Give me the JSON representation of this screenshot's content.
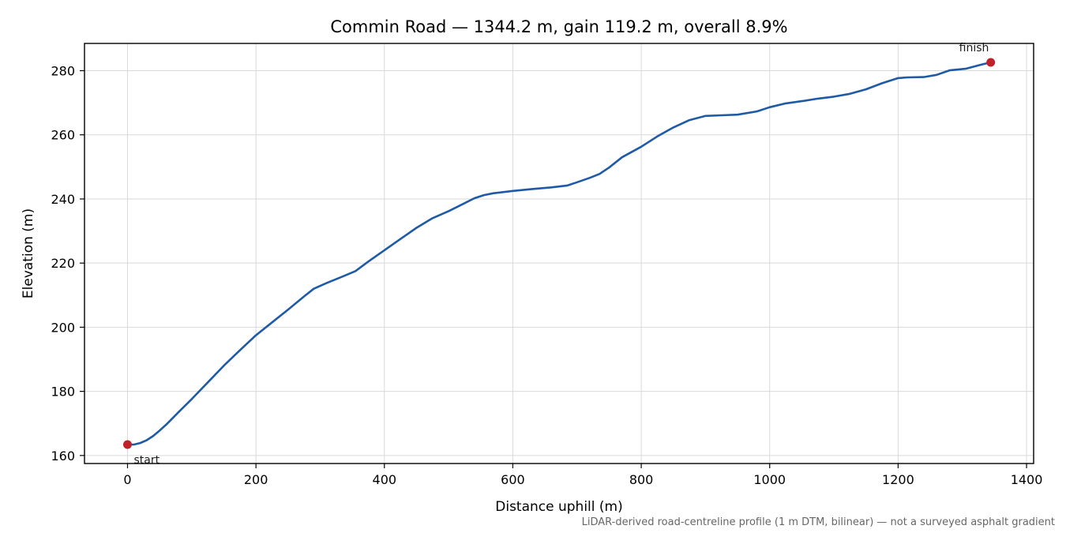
{
  "chart_data": {
    "type": "line",
    "title": "Commin Road — 1344.2 m, gain 119.2 m, overall 8.9%",
    "xlabel": "Distance uphill (m)",
    "ylabel": "Elevation (m)",
    "footnote": "LiDAR-derived road-centreline profile (1 m DTM, bilinear) — not a surveyed asphalt gradient",
    "xlim": [
      -67,
      1411
    ],
    "ylim": [
      157.5,
      288.5
    ],
    "xticks": [
      0,
      200,
      400,
      600,
      800,
      1000,
      1200,
      1400
    ],
    "yticks": [
      160,
      180,
      200,
      220,
      240,
      260,
      280
    ],
    "grid": true,
    "colors": {
      "line": "#1f5aa6",
      "marker": "#c0202a"
    },
    "series": [
      {
        "x": [
          0,
          10,
          20,
          30,
          40,
          50,
          60,
          80,
          100,
          125,
          150,
          175,
          200,
          225,
          250,
          275,
          290,
          310,
          335,
          355,
          375,
          400,
          425,
          450,
          475,
          500,
          520,
          540,
          555,
          570,
          600,
          630,
          660,
          685,
          700,
          720,
          735,
          750,
          770,
          800,
          825,
          850,
          875,
          900,
          925,
          950,
          980,
          1000,
          1025,
          1050,
          1075,
          1100,
          1125,
          1150,
          1175,
          1200,
          1215,
          1240,
          1260,
          1280,
          1305,
          1330,
          1344.2
        ],
        "y": [
          163.4,
          163.4,
          163.9,
          164.8,
          166.1,
          167.8,
          169.6,
          173.6,
          177.6,
          182.8,
          188.0,
          192.8,
          197.5,
          201.5,
          205.5,
          209.6,
          212.0,
          213.8,
          215.8,
          217.5,
          220.5,
          224.0,
          227.5,
          231.0,
          234.0,
          236.2,
          238.2,
          240.2,
          241.2,
          241.8,
          242.5,
          243.1,
          243.6,
          244.2,
          245.2,
          246.6,
          247.8,
          249.8,
          253.0,
          256.3,
          259.5,
          262.3,
          264.6,
          265.9,
          266.1,
          266.3,
          267.3,
          268.6,
          269.8,
          270.5,
          271.3,
          271.9,
          272.8,
          274.2,
          276.1,
          277.7,
          277.9,
          278.0,
          278.7,
          280.1,
          280.6,
          281.9,
          282.6
        ]
      }
    ],
    "annotations": [
      {
        "text": "start",
        "x": 0,
        "y": 163.4
      },
      {
        "text": "finish",
        "x": 1344.2,
        "y": 282.6
      }
    ]
  }
}
